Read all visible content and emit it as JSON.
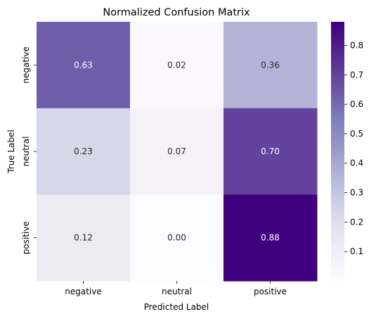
{
  "chart_data": {
    "type": "heatmap",
    "title": "Normalized Confusion Matrix",
    "xlabel": "Predicted Label",
    "ylabel": "True Label",
    "x_categories": [
      "negative",
      "neutral",
      "positive"
    ],
    "y_categories": [
      "negative",
      "neutral",
      "positive"
    ],
    "values": [
      [
        0.63,
        0.02,
        0.36
      ],
      [
        0.23,
        0.07,
        0.7
      ],
      [
        0.12,
        0.0,
        0.88
      ]
    ],
    "value_labels": [
      [
        "0.63",
        "0.02",
        "0.36"
      ],
      [
        "0.23",
        "0.07",
        "0.70"
      ],
      [
        "0.12",
        "0.00",
        "0.88"
      ]
    ],
    "colormap": "Purples",
    "color_range": [
      0.0,
      0.88
    ],
    "colorbar_ticks": [
      0.1,
      0.2,
      0.3,
      0.4,
      0.5,
      0.6,
      0.7,
      0.8
    ],
    "colorbar_tick_labels": [
      "0.1",
      "0.2",
      "0.3",
      "0.4",
      "0.5",
      "0.6",
      "0.7",
      "0.8"
    ]
  }
}
